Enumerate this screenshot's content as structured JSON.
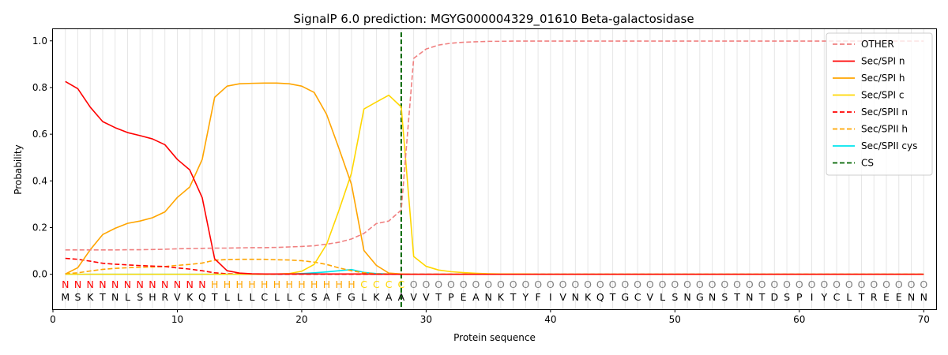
{
  "chart_data": {
    "type": "line",
    "title": "SignalP 6.0 prediction: MGYG000004329_01610 Beta-galactosidase",
    "xlabel": "Protein sequence",
    "ylabel": "Probability",
    "xlim": [
      0,
      71
    ],
    "ylim": [
      -0.15,
      1.05
    ],
    "xticks": [
      0,
      10,
      20,
      30,
      40,
      50,
      60,
      70
    ],
    "yticks": [
      0.0,
      0.2,
      0.4,
      0.6,
      0.8,
      1.0
    ],
    "ytick_labels": [
      "0.0",
      "0.2",
      "0.4",
      "0.6",
      "0.8",
      "1.0"
    ],
    "legend_position": "top-right",
    "sequence": [
      "M",
      "S",
      "K",
      "T",
      "N",
      "L",
      "S",
      "H",
      "R",
      "V",
      "K",
      "Q",
      "T",
      "L",
      "L",
      "L",
      "C",
      "L",
      "L",
      "C",
      "S",
      "A",
      "F",
      "G",
      "L",
      "K",
      "A",
      "A",
      "V",
      "V",
      "T",
      "P",
      "E",
      "A",
      "N",
      "K",
      "T",
      "Y",
      "F",
      "I",
      "V",
      "N",
      "K",
      "Q",
      "T",
      "G",
      "C",
      "V",
      "L",
      "S",
      "N",
      "G",
      "N",
      "S",
      "T",
      "N",
      "T",
      "D",
      "S",
      "P",
      "I",
      "Y",
      "C",
      "L",
      "T",
      "R",
      "E",
      "E",
      "N",
      "N"
    ],
    "prediction": [
      "N",
      "N",
      "N",
      "N",
      "N",
      "N",
      "N",
      "N",
      "N",
      "N",
      "N",
      "N",
      "H",
      "H",
      "H",
      "H",
      "H",
      "H",
      "H",
      "H",
      "H",
      "H",
      "H",
      "H",
      "C",
      "C",
      "C",
      "C",
      "O",
      "O",
      "O",
      "O",
      "O",
      "O",
      "O",
      "O",
      "O",
      "O",
      "O",
      "O",
      "O",
      "O",
      "O",
      "O",
      "O",
      "O",
      "O",
      "O",
      "O",
      "O",
      "O",
      "O",
      "O",
      "O",
      "O",
      "O",
      "O",
      "O",
      "O",
      "O",
      "O",
      "O",
      "O",
      "O",
      "O",
      "O",
      "O",
      "O",
      "O",
      "O"
    ],
    "prediction_colors": {
      "N": "#ff0000",
      "H": "#ffa500",
      "C": "#ffd700",
      "O": "#808080"
    },
    "cleavage_site": 28,
    "series": [
      {
        "name": "OTHER",
        "color": "#f08080",
        "dash": true,
        "values": [
          0.104,
          0.104,
          0.104,
          0.104,
          0.104,
          0.105,
          0.105,
          0.106,
          0.107,
          0.109,
          0.11,
          0.111,
          0.112,
          0.112,
          0.113,
          0.114,
          0.114,
          0.115,
          0.117,
          0.119,
          0.122,
          0.129,
          0.137,
          0.151,
          0.175,
          0.217,
          0.228,
          0.275,
          0.925,
          0.965,
          0.982,
          0.99,
          0.994,
          0.996,
          0.998,
          0.998,
          0.999,
          0.999,
          0.999,
          0.999,
          0.999,
          0.999,
          0.999,
          0.999,
          0.999,
          0.999,
          0.999,
          0.999,
          0.999,
          0.999,
          0.999,
          0.999,
          0.999,
          0.999,
          0.999,
          0.999,
          0.999,
          0.999,
          0.999,
          0.999,
          0.999,
          0.999,
          0.999,
          0.999,
          0.999,
          0.999,
          0.999,
          0.999,
          0.999,
          0.999
        ]
      },
      {
        "name": "Sec/SPI n",
        "color": "#ff0000",
        "dash": false,
        "values": [
          0.826,
          0.795,
          0.716,
          0.654,
          0.628,
          0.607,
          0.594,
          0.58,
          0.555,
          0.492,
          0.447,
          0.328,
          0.066,
          0.015,
          0.005,
          0.002,
          0.001,
          0.001,
          0.001,
          0.001,
          0.001,
          0.001,
          0.001,
          0.001,
          0.001,
          0.0,
          0.0,
          0.0,
          0.0,
          0.0,
          0.0,
          0.0,
          0.0,
          0.0,
          0.0,
          0.0,
          0.0,
          0.0,
          0.0,
          0.0,
          0.0,
          0.0,
          0.0,
          0.0,
          0.0,
          0.0,
          0.0,
          0.0,
          0.0,
          0.0,
          0.0,
          0.0,
          0.0,
          0.0,
          0.0,
          0.0,
          0.0,
          0.0,
          0.0,
          0.0,
          0.0,
          0.0,
          0.0,
          0.0,
          0.0,
          0.0,
          0.0,
          0.0,
          0.0,
          0.0
        ]
      },
      {
        "name": "Sec/SPI h",
        "color": "#ffa500",
        "dash": false,
        "values": [
          0.001,
          0.028,
          0.105,
          0.17,
          0.197,
          0.218,
          0.228,
          0.242,
          0.267,
          0.329,
          0.374,
          0.492,
          0.758,
          0.806,
          0.816,
          0.818,
          0.819,
          0.819,
          0.816,
          0.806,
          0.779,
          0.685,
          0.538,
          0.385,
          0.102,
          0.038,
          0.005,
          0.001,
          0.0,
          0.0,
          0.0,
          0.0,
          0.0,
          0.0,
          0.0,
          0.0,
          0.0,
          0.0,
          0.0,
          0.0,
          0.0,
          0.0,
          0.0,
          0.0,
          0.0,
          0.0,
          0.0,
          0.0,
          0.0,
          0.0,
          0.0,
          0.0,
          0.0,
          0.0,
          0.0,
          0.0,
          0.0,
          0.0,
          0.0,
          0.0,
          0.0,
          0.0,
          0.0,
          0.0,
          0.0,
          0.0,
          0.0,
          0.0,
          0.0,
          0.0
        ]
      },
      {
        "name": "Sec/SPI c",
        "color": "#ffd700",
        "dash": false,
        "values": [
          0.0,
          0.0,
          0.0,
          0.0,
          0.0,
          0.0,
          0.0,
          0.0,
          0.0,
          0.0,
          0.0,
          0.0,
          0.0,
          0.0,
          0.0,
          0.0,
          0.0,
          0.001,
          0.003,
          0.013,
          0.042,
          0.128,
          0.275,
          0.433,
          0.708,
          0.738,
          0.767,
          0.717,
          0.076,
          0.034,
          0.018,
          0.011,
          0.007,
          0.004,
          0.002,
          0.001,
          0.001,
          0.001,
          0.0,
          0.0,
          0.0,
          0.0,
          0.0,
          0.0,
          0.0,
          0.0,
          0.0,
          0.0,
          0.0,
          0.0,
          0.0,
          0.0,
          0.0,
          0.0,
          0.0,
          0.0,
          0.0,
          0.0,
          0.0,
          0.0,
          0.0,
          0.0,
          0.0,
          0.0,
          0.0,
          0.0,
          0.0,
          0.0,
          0.0,
          0.0
        ]
      },
      {
        "name": "Sec/SPII n",
        "color": "#ff0000",
        "dash": true,
        "values": [
          0.068,
          0.064,
          0.056,
          0.047,
          0.043,
          0.04,
          0.037,
          0.035,
          0.033,
          0.027,
          0.022,
          0.015,
          0.006,
          0.002,
          0.001,
          0.001,
          0.0,
          0.0,
          0.0,
          0.0,
          0.0,
          0.0,
          0.0,
          0.0,
          0.0,
          0.0,
          0.0,
          0.0,
          0.0,
          0.0,
          0.0,
          0.0,
          0.0,
          0.0,
          0.0,
          0.0,
          0.0,
          0.0,
          0.0,
          0.0,
          0.0,
          0.0,
          0.0,
          0.0,
          0.0,
          0.0,
          0.0,
          0.0,
          0.0,
          0.0,
          0.0,
          0.0,
          0.0,
          0.0,
          0.0,
          0.0,
          0.0,
          0.0,
          0.0,
          0.0,
          0.0,
          0.0,
          0.0,
          0.0,
          0.0,
          0.0,
          0.0,
          0.0,
          0.0,
          0.0
        ]
      },
      {
        "name": "Sec/SPII h",
        "color": "#ffa500",
        "dash": true,
        "values": [
          0.002,
          0.006,
          0.014,
          0.021,
          0.025,
          0.028,
          0.03,
          0.031,
          0.033,
          0.038,
          0.042,
          0.048,
          0.06,
          0.063,
          0.064,
          0.064,
          0.064,
          0.062,
          0.061,
          0.058,
          0.052,
          0.042,
          0.027,
          0.015,
          0.006,
          0.002,
          0.001,
          0.0,
          0.0,
          0.0,
          0.0,
          0.0,
          0.0,
          0.0,
          0.0,
          0.0,
          0.0,
          0.0,
          0.0,
          0.0,
          0.0,
          0.0,
          0.0,
          0.0,
          0.0,
          0.0,
          0.0,
          0.0,
          0.0,
          0.0,
          0.0,
          0.0,
          0.0,
          0.0,
          0.0,
          0.0,
          0.0,
          0.0,
          0.0,
          0.0,
          0.0,
          0.0,
          0.0,
          0.0,
          0.0,
          0.0,
          0.0,
          0.0,
          0.0,
          0.0
        ]
      },
      {
        "name": "Sec/SPII cys",
        "color": "#00e5ee",
        "dash": false,
        "values": [
          0.0,
          0.0,
          0.0,
          0.0,
          0.0,
          0.0,
          0.0,
          0.0,
          0.0,
          0.0,
          0.0,
          0.0,
          0.0,
          0.0,
          0.0,
          0.0,
          0.0,
          0.0,
          0.001,
          0.003,
          0.006,
          0.01,
          0.015,
          0.02,
          0.008,
          0.003,
          0.001,
          0.0,
          0.0,
          0.0,
          0.0,
          0.0,
          0.0,
          0.0,
          0.0,
          0.0,
          0.0,
          0.0,
          0.0,
          0.0,
          0.0,
          0.0,
          0.0,
          0.0,
          0.0,
          0.0,
          0.0,
          0.0,
          0.0,
          0.0,
          0.0,
          0.0,
          0.0,
          0.0,
          0.0,
          0.0,
          0.0,
          0.0,
          0.0,
          0.0,
          0.0,
          0.0,
          0.0,
          0.0,
          0.0,
          0.0,
          0.0,
          0.0,
          0.0,
          0.0
        ]
      },
      {
        "name": "CS",
        "color": "#006400",
        "dash": true,
        "vertical_at": 28
      }
    ]
  }
}
